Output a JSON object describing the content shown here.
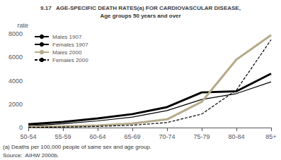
{
  "chart_data": {
    "type": "line",
    "title": "9.17   AGE-SPECIFIC DEATH RATES(a) FOR CARDIOVASCULAR DISEASE,",
    "subtitle": "Age groups 50 years and over",
    "y_label": "rate",
    "categories": [
      "50-54",
      "55-59",
      "60-64",
      "65-69",
      "70-74",
      "75-79",
      "80-84",
      "85+"
    ],
    "series": [
      {
        "name": "Males 1907",
        "color": "#000000",
        "line_style": "solid",
        "values": [
          280,
          480,
          780,
          1150,
          1750,
          3000,
          3100,
          4600
        ]
      },
      {
        "name": "Females 1907",
        "color": "#000000",
        "line_style": "solid",
        "values": [
          160,
          320,
          570,
          900,
          1450,
          2400,
          2900,
          3900
        ]
      },
      {
        "name": "Males 2000",
        "color": "#b5aa8a",
        "line_style": "solid",
        "values": [
          60,
          100,
          180,
          350,
          700,
          2200,
          5800,
          7900
        ]
      },
      {
        "name": "Females 2000",
        "color": "#000000",
        "line_style": "dashed",
        "values": [
          20,
          50,
          100,
          200,
          430,
          1150,
          3200,
          7500
        ]
      }
    ],
    "ylim": [
      0,
      8000
    ],
    "yticks": [
      0,
      2000,
      4000,
      6000,
      8000
    ],
    "grid": false,
    "legend": "upper left",
    "annotations": [
      "(a) Deaths per 100,000 people of same sex and age group.",
      "Source:  AIHW 2000b."
    ]
  }
}
